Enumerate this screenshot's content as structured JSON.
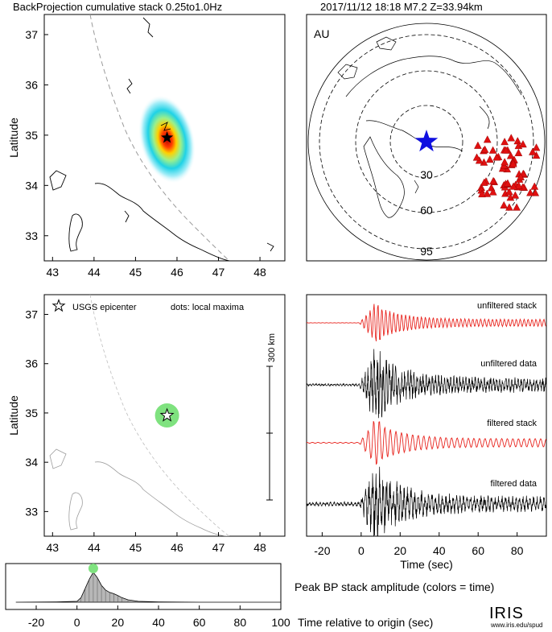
{
  "header": {
    "title": "BackProjection cumulative stack 0.25to1.0Hz",
    "event": "2017/11/12 18:18   M7.2   Z=33.94km"
  },
  "map_top": {
    "ylabel": "Latitude",
    "xticks": [
      "43",
      "44",
      "45",
      "46",
      "47",
      "48"
    ],
    "yticks": [
      "37",
      "36",
      "35",
      "34",
      "33"
    ]
  },
  "map_bottom": {
    "ylabel": "Latitude",
    "xticks": [
      "43",
      "44",
      "45",
      "46",
      "47",
      "48"
    ],
    "yticks": [
      "37",
      "36",
      "35",
      "34",
      "33"
    ],
    "legend_star": "USGS epicenter",
    "legend_dots": "dots: local maxima",
    "scale_label": "300 km"
  },
  "globe": {
    "network": "AU",
    "ring_labels": [
      "30",
      "60",
      "95"
    ]
  },
  "traces": {
    "labels": [
      "unfiltered stack",
      "unfiltered data",
      "filtered stack",
      "filtered data"
    ],
    "xticks": [
      "-20",
      "0",
      "20",
      "40",
      "60",
      "80"
    ],
    "xlabel": "Time (sec)"
  },
  "amplitude": {
    "xticks": [
      "-20",
      "0",
      "20",
      "40",
      "60",
      "80",
      "100"
    ],
    "xlabel": "Time relative to origin (sec)",
    "title": "Peak BP stack amplitude (colors = time)"
  },
  "logo": {
    "name": "IRIS",
    "url": "www.iris.edu/spud"
  },
  "colors": {
    "stack": "#e8251f",
    "data": "#000000",
    "epicenter_glow": "#7fe27f",
    "marker_blue": "#1010e0",
    "station_red": "#e01010"
  },
  "chart_data": [
    {
      "type": "heatmap",
      "title": "",
      "xlabel": "",
      "ylabel": "Latitude",
      "xlim": [
        42.8,
        48.6
      ],
      "ylim": [
        32.5,
        37.4
      ],
      "peak": {
        "lon": 45.76,
        "lat": 34.95
      },
      "epicenter": {
        "lon": 45.76,
        "lat": 34.95
      }
    },
    {
      "type": "scatter",
      "xlabel": "",
      "ylabel": "Latitude",
      "xlim": [
        42.8,
        48.6
      ],
      "ylim": [
        32.5,
        37.4
      ],
      "points": [
        {
          "lon": 45.76,
          "lat": 34.95
        }
      ]
    },
    {
      "type": "line",
      "xlabel": "Time (sec)",
      "xlim": [
        -28,
        95
      ],
      "series": [
        {
          "name": "unfiltered stack"
        },
        {
          "name": "unfiltered data"
        },
        {
          "name": "filtered stack"
        },
        {
          "name": "filtered data"
        }
      ]
    },
    {
      "type": "area",
      "xlabel": "Time relative to origin (sec)",
      "xlim": [
        -35,
        100
      ],
      "x": [
        -30,
        -10,
        0,
        2,
        4,
        6,
        8,
        10,
        12,
        14,
        16,
        18,
        20,
        22,
        25,
        30,
        40,
        60,
        100
      ],
      "values": [
        0,
        0.01,
        0.03,
        0.15,
        0.45,
        0.75,
        0.98,
        0.8,
        0.55,
        0.4,
        0.32,
        0.28,
        0.22,
        0.15,
        0.08,
        0.03,
        0.01,
        0,
        0
      ],
      "peak_time": 8
    }
  ]
}
